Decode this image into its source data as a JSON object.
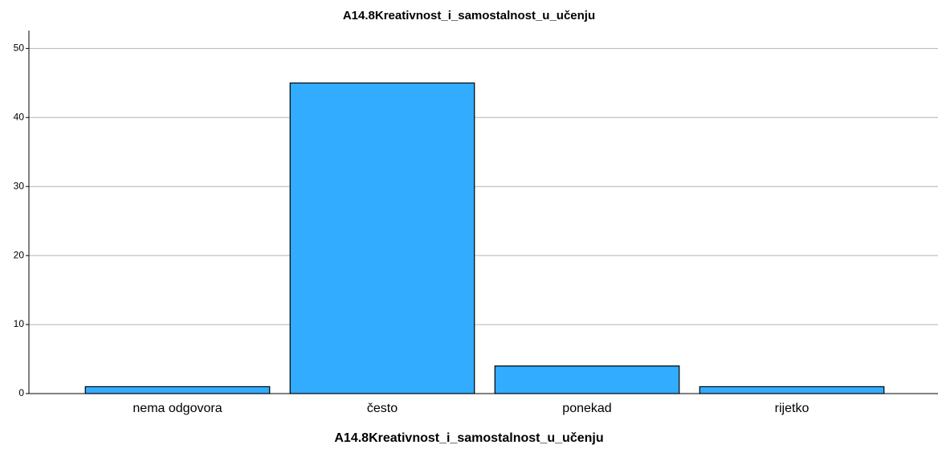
{
  "chart_data": {
    "type": "bar",
    "title": "A14.8Kreativnost_i_samostalnost_u_učenju",
    "x_label": "A14.8Kreativnost_i_samostalnost_u_učenju",
    "categories": [
      "nema odgovora",
      "često",
      "ponekad",
      "rijetko"
    ],
    "values": [
      1,
      45,
      4,
      1
    ],
    "color": "#31acff",
    "ylim": [
      0,
      52.6
    ],
    "yticks": [
      0,
      10,
      20,
      30,
      40,
      50
    ],
    "grid": true
  }
}
